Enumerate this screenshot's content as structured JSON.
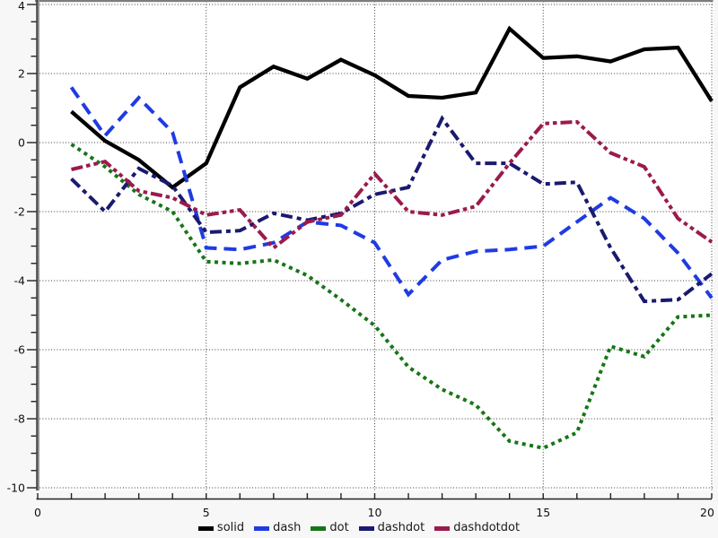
{
  "chart_data": {
    "type": "line",
    "title": "",
    "xlabel": "",
    "ylabel": "",
    "xlim": [
      0,
      20
    ],
    "ylim": [
      -10,
      4
    ],
    "grid": "dotted",
    "legend_position": "bottom-center",
    "x_major_ticks": [
      0,
      5,
      10,
      15,
      20
    ],
    "x_tick_labels": [
      "0",
      "5",
      "10",
      "15",
      "20"
    ],
    "x_minor_step": 1,
    "y_major_ticks": [
      4,
      2,
      0,
      -2,
      -4,
      -6,
      -8,
      -10
    ],
    "y_tick_labels": [
      "4",
      "2",
      "0",
      "-2",
      "-4",
      "-6",
      "-8",
      "-10"
    ],
    "y_minor_step": 0.5,
    "x": [
      1,
      2,
      3,
      4,
      5,
      6,
      7,
      8,
      9,
      10,
      11,
      12,
      13,
      14,
      15,
      16,
      17,
      18,
      19,
      20
    ],
    "series": [
      {
        "name": "solid",
        "line_style": "solid",
        "color": "#000000",
        "values": [
          0.9,
          0.05,
          -0.5,
          -1.3,
          -0.6,
          1.6,
          2.2,
          1.85,
          2.4,
          1.95,
          1.35,
          1.3,
          1.45,
          3.3,
          2.45,
          2.5,
          2.35,
          2.7,
          2.75,
          1.2
        ]
      },
      {
        "name": "dash",
        "line_style": "dash",
        "color": "#1f3be3",
        "values": [
          1.6,
          0.2,
          1.3,
          0.3,
          -3.05,
          -3.1,
          -2.9,
          -2.3,
          -2.4,
          -2.9,
          -4.4,
          -3.4,
          -3.15,
          -3.1,
          -3.0,
          -2.3,
          -1.6,
          -2.2,
          -3.2,
          -4.5
        ]
      },
      {
        "name": "dot",
        "line_style": "dot",
        "color": "#177517",
        "values": [
          -0.05,
          -0.7,
          -1.5,
          -2.0,
          -3.45,
          -3.5,
          -3.4,
          -3.85,
          -4.55,
          -5.3,
          -6.5,
          -7.15,
          -7.6,
          -8.65,
          -8.85,
          -8.4,
          -5.9,
          -6.2,
          -5.05,
          -5.0
        ]
      },
      {
        "name": "dashdot",
        "line_style": "dashdot",
        "color": "#1a1a70",
        "values": [
          -1.05,
          -2.0,
          -0.75,
          -1.25,
          -2.6,
          -2.55,
          -2.05,
          -2.25,
          -2.05,
          -1.5,
          -1.3,
          0.7,
          -0.6,
          -0.6,
          -1.2,
          -1.15,
          -3.05,
          -4.6,
          -4.55,
          -3.8
        ]
      },
      {
        "name": "dashdotdot",
        "line_style": "dashdotdot",
        "color": "#9b1a4d",
        "values": [
          -0.78,
          -0.55,
          -1.4,
          -1.6,
          -2.1,
          -1.95,
          -3.05,
          -2.3,
          -2.1,
          -0.9,
          -2.0,
          -2.1,
          -1.85,
          -0.6,
          0.55,
          0.6,
          -0.3,
          -0.7,
          -2.2,
          -2.88
        ]
      }
    ]
  },
  "styles": {
    "plot_bg": "#ffffff",
    "outer_bg": "#f7f7f7",
    "grid_color": "#3a3a3a",
    "axis_dark": "#4a4a4a",
    "axis_light": "#9a9a9a",
    "tick_color": "#222222",
    "label_color": "#111111"
  }
}
